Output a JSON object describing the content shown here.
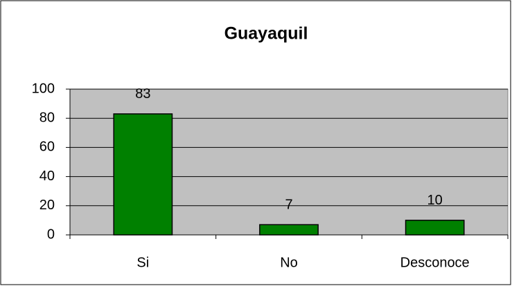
{
  "chart_data": {
    "type": "bar",
    "title": "Guayaquil",
    "categories": [
      "Si",
      "No",
      "Desconoce"
    ],
    "values": [
      83,
      7,
      10
    ],
    "color": "#008000",
    "ylim": [
      0,
      100
    ],
    "yticks": [
      0,
      20,
      40,
      60,
      80,
      100
    ],
    "grid": true,
    "plot_background": "#c0c0c0"
  }
}
